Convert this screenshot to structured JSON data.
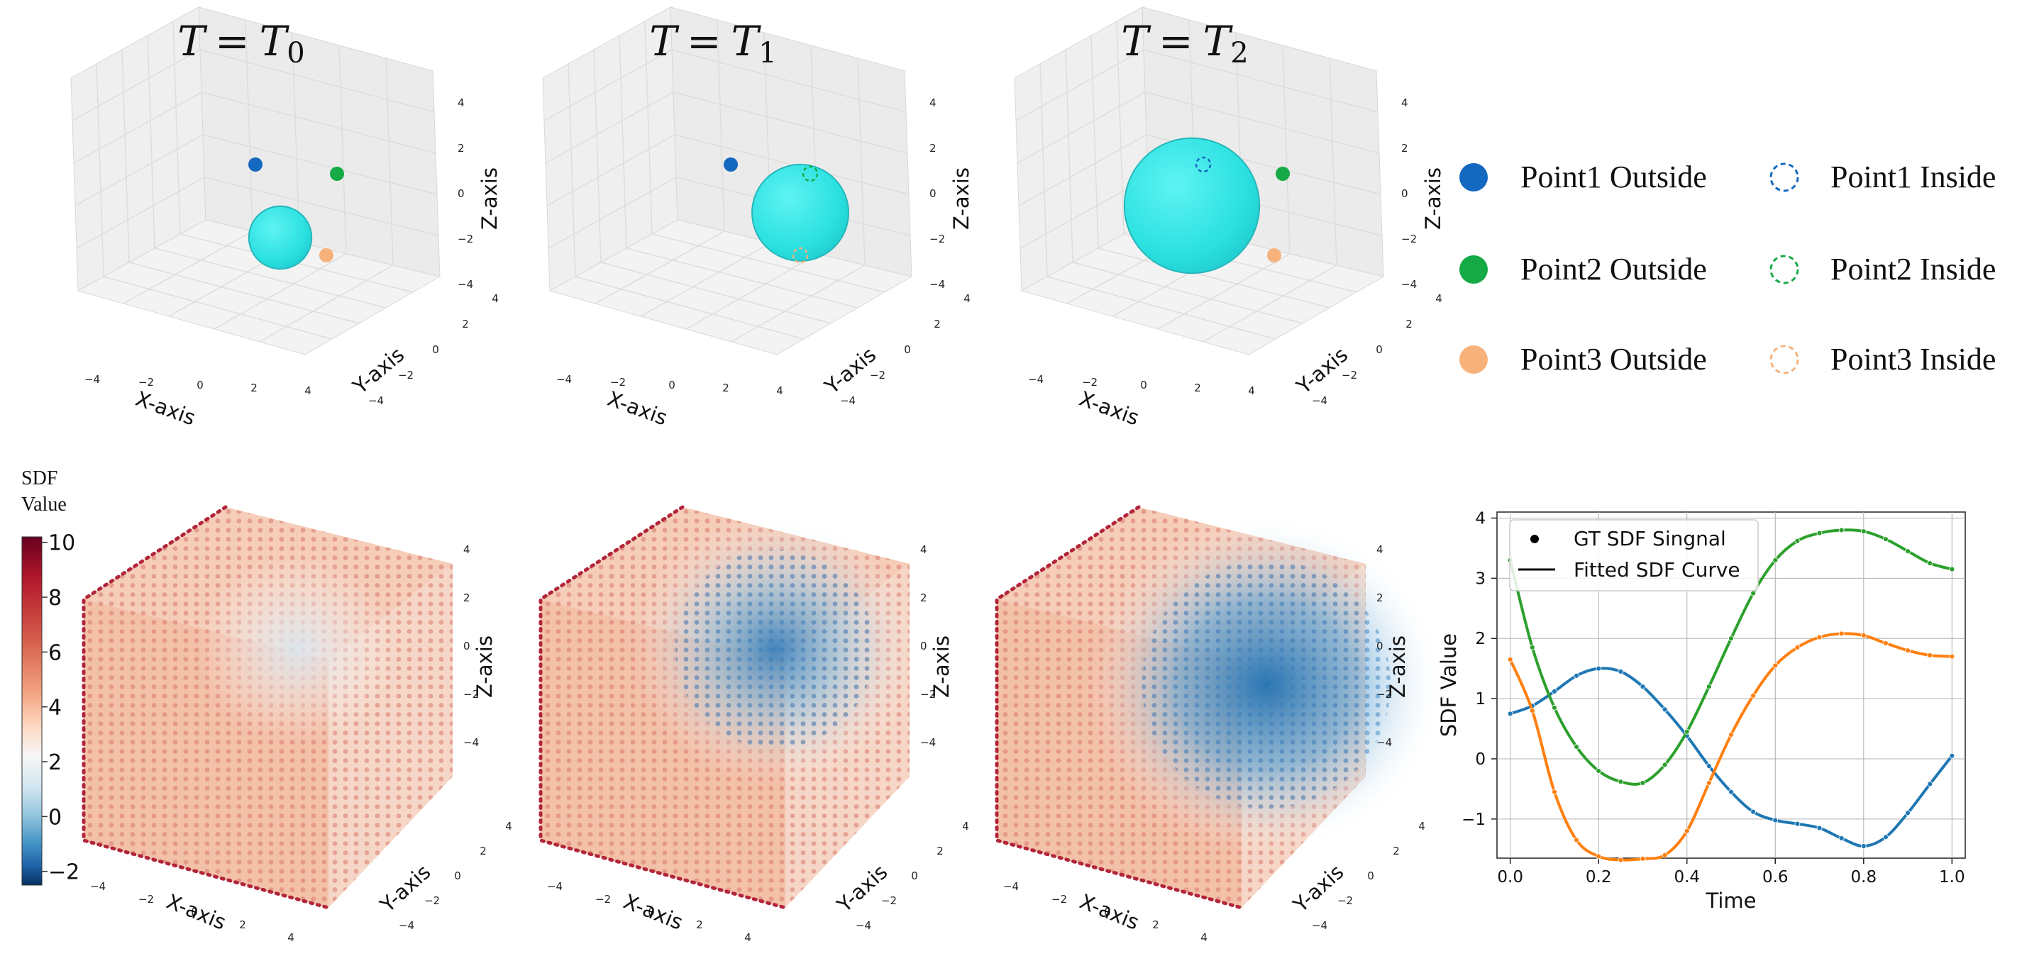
{
  "panels": [
    {
      "title_lhs": "T",
      "title_eq": "=",
      "title_rhs": "T",
      "title_sub": "0",
      "sphere_radius": 1.3
    },
    {
      "title_lhs": "T",
      "title_eq": "=",
      "title_rhs": "T",
      "title_sub": "1",
      "sphere_radius": 2.0
    },
    {
      "title_lhs": "T",
      "title_eq": "=",
      "title_rhs": "T",
      "title_sub": "2",
      "sphere_radius": 2.8
    }
  ],
  "axes3d": {
    "xlabel": "X-axis",
    "ylabel": "Y-axis",
    "zlabel": "Z-axis",
    "ticks": [
      "−4",
      "−2",
      "0",
      "2",
      "4"
    ]
  },
  "colors": {
    "point1": "#1468c0",
    "point2": "#15aa46",
    "point3": "#f7b27b",
    "sphere": "#29e3e3",
    "sdf_blue": "#1f77b4",
    "sdf_orange": "#ff7f0e",
    "sdf_green": "#2ca02c"
  },
  "legend": {
    "outside": [
      "Point1 Outside",
      "Point2 Outside",
      "Point3 Outside"
    ],
    "inside": [
      "Point1 Inside",
      "Point2 Inside",
      "Point3 Inside"
    ]
  },
  "colorbar": {
    "title_line1": "SDF",
    "title_line2": "Value",
    "ticks": [
      "10",
      "8",
      "6",
      "4",
      "2",
      "0",
      "−2"
    ],
    "range": [
      -2.5,
      10.2
    ]
  },
  "chart_data": {
    "type": "line",
    "xlabel": "Time",
    "ylabel": "SDF Value",
    "xlim": [
      -0.03,
      1.03
    ],
    "ylim": [
      -1.65,
      4.1
    ],
    "xticks": [
      "0.0",
      "0.2",
      "0.4",
      "0.6",
      "0.8",
      "1.0"
    ],
    "yticks": [
      "4",
      "3",
      "2",
      "1",
      "0",
      "−1"
    ],
    "grid": true,
    "legend_position": "top-left",
    "legend": [
      "GT SDF Singnal",
      "Fitted SDF Curve"
    ],
    "x": [
      0.0,
      0.05,
      0.1,
      0.15,
      0.2,
      0.25,
      0.3,
      0.35,
      0.4,
      0.45,
      0.5,
      0.55,
      0.6,
      0.65,
      0.7,
      0.75,
      0.8,
      0.85,
      0.9,
      0.95,
      1.0
    ],
    "series": [
      {
        "color": "#1f77b4",
        "values": [
          0.75,
          0.88,
          1.12,
          1.38,
          1.5,
          1.45,
          1.2,
          0.82,
          0.38,
          -0.12,
          -0.55,
          -0.88,
          -1.02,
          -1.08,
          -1.15,
          -1.32,
          -1.45,
          -1.3,
          -0.9,
          -0.42,
          0.05
        ]
      },
      {
        "color": "#ff7f0e",
        "values": [
          1.65,
          0.8,
          -0.55,
          -1.35,
          -1.62,
          -1.68,
          -1.66,
          -1.6,
          -1.2,
          -0.4,
          0.4,
          1.05,
          1.55,
          1.85,
          2.02,
          2.08,
          2.05,
          1.92,
          1.8,
          1.72,
          1.7
        ]
      },
      {
        "color": "#2ca02c",
        "values": [
          3.3,
          1.85,
          0.85,
          0.2,
          -0.2,
          -0.38,
          -0.4,
          -0.1,
          0.45,
          1.2,
          2.0,
          2.75,
          3.3,
          3.62,
          3.75,
          3.8,
          3.78,
          3.65,
          3.45,
          3.25,
          3.15
        ]
      }
    ]
  }
}
